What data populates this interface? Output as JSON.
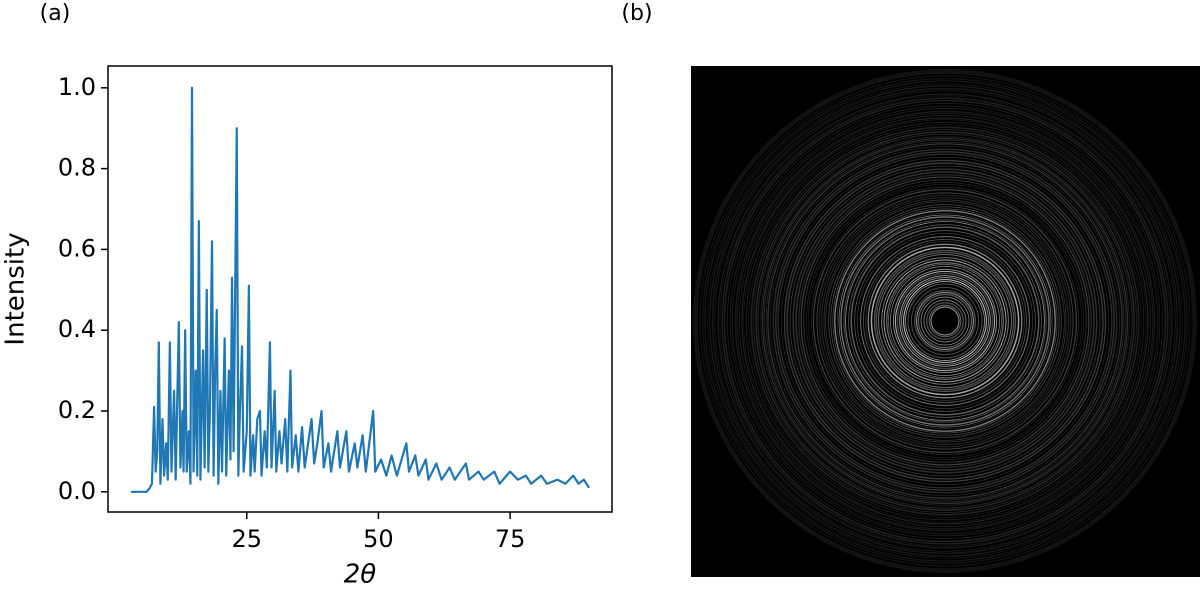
{
  "chart_data": [
    {
      "type": "line",
      "panel_label": "(a)",
      "xlabel": "2θ",
      "ylabel": "Intensity",
      "color": "#1f77b4",
      "xlim": [
        -1.35,
        94.35
      ],
      "ylim": [
        -0.05,
        1.054
      ],
      "xticks": [
        25,
        50,
        75
      ],
      "yticks": [
        {
          "value": 0,
          "label": "0.0"
        },
        0.2,
        0.4,
        0.6,
        0.8,
        {
          "value": 1,
          "label": "1.0"
        }
      ],
      "x": [
        3,
        6,
        6.6,
        7.0,
        7.4,
        7.7,
        8.0,
        8.3,
        8.6,
        9.0,
        9.3,
        9.7,
        10.0,
        10.4,
        10.7,
        11.2,
        11.5,
        12.1,
        12.4,
        12.8,
        13.0,
        13.3,
        13.6,
        14.0,
        14.3,
        14.6,
        14.9,
        15.3,
        15.6,
        15.9,
        16.2,
        16.7,
        17.0,
        17.4,
        17.7,
        18.0,
        18.4,
        18.7,
        19.0,
        19.3,
        19.6,
        20.0,
        20.3,
        20.8,
        21.1,
        21.6,
        21.9,
        22.2,
        22.5,
        22.8,
        23.1,
        23.4,
        23.7,
        24.1,
        24.4,
        25.0,
        25.4,
        25.7,
        26.2,
        26.5,
        27.0,
        27.5,
        27.8,
        28.4,
        28.8,
        29.4,
        29.7,
        30.3,
        30.6,
        31.2,
        31.6,
        32.3,
        32.7,
        33.3,
        33.6,
        34.3,
        34.8,
        35.5,
        36.0,
        37.3,
        37.8,
        38.4,
        39.2,
        39.6,
        40.5,
        41.0,
        42.2,
        42.7,
        43.9,
        44.4,
        45.5,
        46.0,
        47.0,
        47.6,
        49.0,
        49.4,
        50.5,
        51.5,
        52.5,
        53.5,
        55.3,
        55.8,
        57.0,
        57.6,
        59.0,
        59.5,
        61.0,
        62.0,
        63.5,
        64.5,
        66.6,
        67.2,
        69.0,
        70.0,
        72.0,
        73.0,
        75.0,
        76.5,
        78.0,
        79.0,
        80.9,
        82.0,
        84.0,
        85.5,
        87.0,
        88.0,
        89.0,
        90.0
      ],
      "values": [
        0,
        0,
        0.01,
        0.02,
        0.21,
        0.05,
        0.1,
        0.37,
        0.02,
        0.18,
        0.04,
        0.12,
        0.03,
        0.37,
        0.05,
        0.25,
        0.03,
        0.42,
        0.06,
        0.2,
        0.05,
        0.4,
        0.05,
        0.15,
        0.02,
        1.0,
        0.05,
        0.3,
        0.04,
        0.67,
        0.03,
        0.35,
        0.06,
        0.5,
        0.05,
        0.2,
        0.62,
        0.04,
        0.3,
        0.45,
        0.02,
        0.25,
        0.05,
        0.38,
        0.04,
        0.3,
        0.08,
        0.53,
        0.1,
        0.5,
        0.9,
        0.04,
        0.2,
        0.36,
        0.05,
        0.15,
        0.51,
        0.04,
        0.14,
        0.05,
        0.18,
        0.2,
        0.04,
        0.15,
        0.06,
        0.37,
        0.06,
        0.25,
        0.05,
        0.15,
        0.07,
        0.18,
        0.05,
        0.3,
        0.06,
        0.14,
        0.05,
        0.16,
        0.06,
        0.18,
        0.07,
        0.12,
        0.2,
        0.06,
        0.12,
        0.05,
        0.15,
        0.06,
        0.15,
        0.05,
        0.12,
        0.06,
        0.14,
        0.05,
        0.2,
        0.05,
        0.08,
        0.04,
        0.09,
        0.04,
        0.12,
        0.05,
        0.09,
        0.04,
        0.08,
        0.03,
        0.07,
        0.03,
        0.06,
        0.03,
        0.07,
        0.03,
        0.05,
        0.03,
        0.05,
        0.02,
        0.05,
        0.03,
        0.04,
        0.02,
        0.04,
        0.02,
        0.03,
        0.02,
        0.04,
        0.02,
        0.03,
        0.01
      ]
    },
    {
      "type": "image",
      "panel_label": "(b)"
    }
  ]
}
